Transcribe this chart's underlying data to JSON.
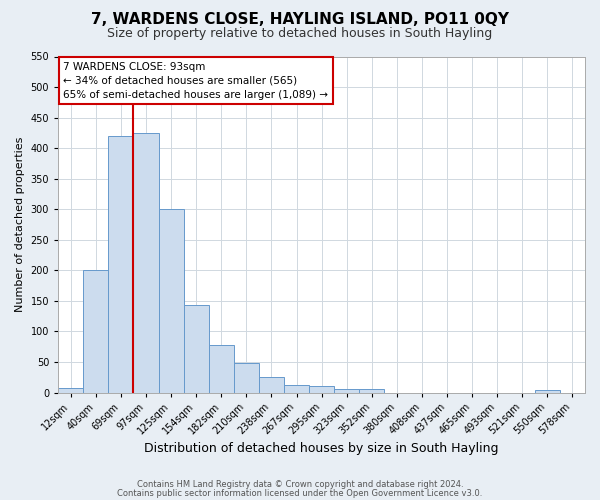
{
  "title": "7, WARDENS CLOSE, HAYLING ISLAND, PO11 0QY",
  "subtitle": "Size of property relative to detached houses in South Hayling",
  "xlabel": "Distribution of detached houses by size in South Hayling",
  "ylabel": "Number of detached properties",
  "bar_labels": [
    "12sqm",
    "40sqm",
    "69sqm",
    "97sqm",
    "125sqm",
    "154sqm",
    "182sqm",
    "210sqm",
    "238sqm",
    "267sqm",
    "295sqm",
    "323sqm",
    "352sqm",
    "380sqm",
    "408sqm",
    "437sqm",
    "465sqm",
    "493sqm",
    "521sqm",
    "550sqm",
    "578sqm"
  ],
  "bar_values": [
    8,
    200,
    420,
    425,
    300,
    143,
    78,
    48,
    25,
    12,
    10,
    6,
    5,
    0,
    0,
    0,
    0,
    0,
    0,
    4,
    0
  ],
  "bar_color": "#ccdcee",
  "bar_edge_color": "#6699cc",
  "vline_color": "#cc0000",
  "vline_index": 3,
  "ylim": [
    0,
    550
  ],
  "yticks": [
    0,
    50,
    100,
    150,
    200,
    250,
    300,
    350,
    400,
    450,
    500,
    550
  ],
  "annotation_title": "7 WARDENS CLOSE: 93sqm",
  "annotation_line1": "← 34% of detached houses are smaller (565)",
  "annotation_line2": "65% of semi-detached houses are larger (1,089) →",
  "annotation_box_color": "#cc0000",
  "footer_line1": "Contains HM Land Registry data © Crown copyright and database right 2024.",
  "footer_line2": "Contains public sector information licensed under the Open Government Licence v3.0.",
  "bg_color": "#e8eef4",
  "plot_bg_color": "#ffffff",
  "grid_color": "#d0d8e0",
  "title_fontsize": 11,
  "subtitle_fontsize": 9,
  "xlabel_fontsize": 9,
  "ylabel_fontsize": 8,
  "tick_fontsize": 7,
  "annotation_fontsize": 7.5,
  "footer_fontsize": 6
}
